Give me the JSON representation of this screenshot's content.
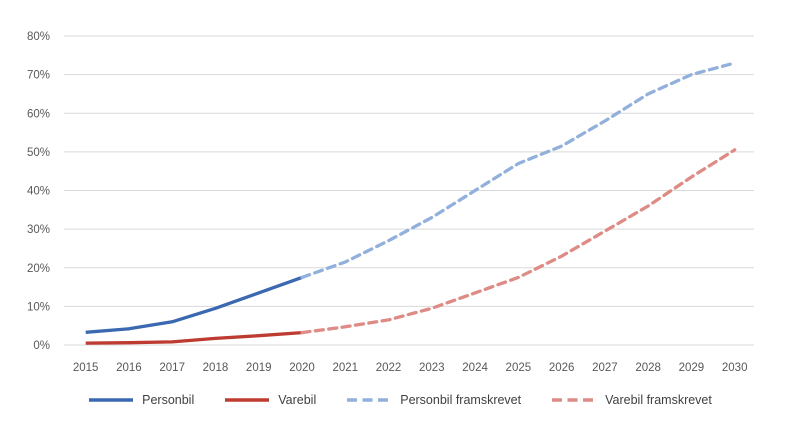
{
  "chart_data": {
    "type": "line",
    "title": "",
    "xlabel": "",
    "ylabel": "",
    "x": [
      "2015",
      "2016",
      "2017",
      "2018",
      "2019",
      "2020",
      "2021",
      "2022",
      "2023",
      "2024",
      "2025",
      "2026",
      "2027",
      "2028",
      "2029",
      "2030"
    ],
    "y_ticks": [
      "0%",
      "10%",
      "20%",
      "30%",
      "40%",
      "50%",
      "60%",
      "70%",
      "80%"
    ],
    "ylim": [
      0,
      80
    ],
    "ytick_step": 10,
    "grid": true,
    "legend_position": "bottom",
    "series": [
      {
        "name": "Personbil",
        "style": "solid",
        "color": "#3A68B1",
        "x": [
          "2015",
          "2016",
          "2017",
          "2018",
          "2019",
          "2020"
        ],
        "values": [
          3.3,
          4.2,
          6.0,
          9.5,
          13.5,
          17.5
        ]
      },
      {
        "name": "Varebil",
        "style": "solid",
        "color": "#BE3B31",
        "x": [
          "2015",
          "2016",
          "2017",
          "2018",
          "2019",
          "2020"
        ],
        "values": [
          0.5,
          0.6,
          0.8,
          1.7,
          2.4,
          3.2
        ]
      },
      {
        "name": "Personbil framskrevet",
        "style": "dashed",
        "color": "#91B0DC",
        "x": [
          "2020",
          "2021",
          "2022",
          "2023",
          "2024",
          "2025",
          "2026",
          "2027",
          "2028",
          "2029",
          "2030"
        ],
        "values": [
          17.5,
          21.5,
          27.0,
          33.0,
          40.0,
          47.0,
          51.5,
          58.0,
          65.0,
          70.0,
          73.0
        ]
      },
      {
        "name": "Varebil framskrevet",
        "style": "dashed",
        "color": "#DE8B85",
        "x": [
          "2020",
          "2021",
          "2022",
          "2023",
          "2024",
          "2025",
          "2026",
          "2027",
          "2028",
          "2029",
          "2030"
        ],
        "values": [
          3.2,
          4.7,
          6.5,
          9.5,
          13.5,
          17.5,
          23.0,
          29.5,
          36.0,
          43.5,
          50.5
        ]
      }
    ]
  },
  "colors": {
    "gridline": "#D9D9D9",
    "tick_label": "#595959",
    "legend_label": "#404040",
    "background": "#FFFFFF"
  }
}
